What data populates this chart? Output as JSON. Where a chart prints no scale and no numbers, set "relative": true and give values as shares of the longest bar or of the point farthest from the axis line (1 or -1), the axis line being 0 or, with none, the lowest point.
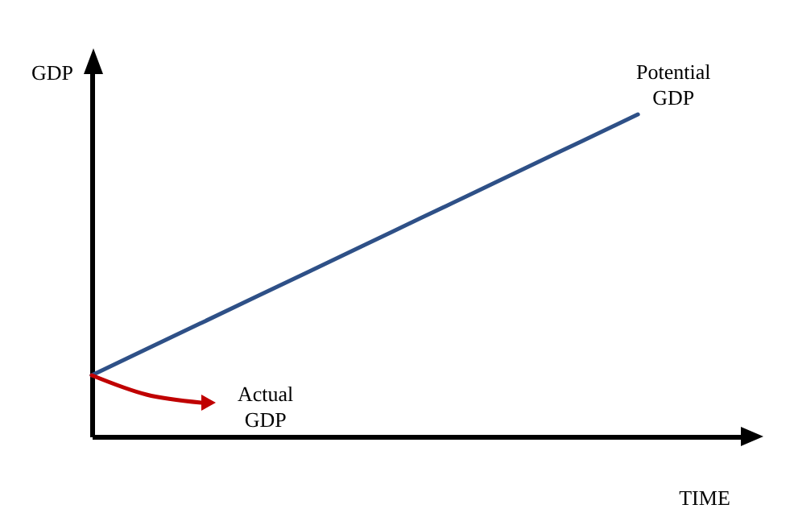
{
  "chart_data": {
    "type": "line",
    "relative": true,
    "xlabel": "TIME",
    "ylabel": "GDP",
    "categories": [
      null,
      null,
      null,
      null,
      null,
      null,
      null,
      null,
      null,
      null,
      null
    ],
    "series": [
      {
        "name": "Potential GDP",
        "color": "#2e5087",
        "values": [
          0.19,
          0.271,
          0.352,
          0.433,
          0.514,
          0.595,
          0.676,
          0.757,
          0.838,
          0.919,
          1
        ]
      },
      {
        "name": "Actual GDP",
        "color": "#c00000",
        "values": [
          0.19,
          0.13,
          0.105,
          null,
          null,
          null,
          null,
          null,
          null,
          null,
          null
        ]
      }
    ]
  }
}
